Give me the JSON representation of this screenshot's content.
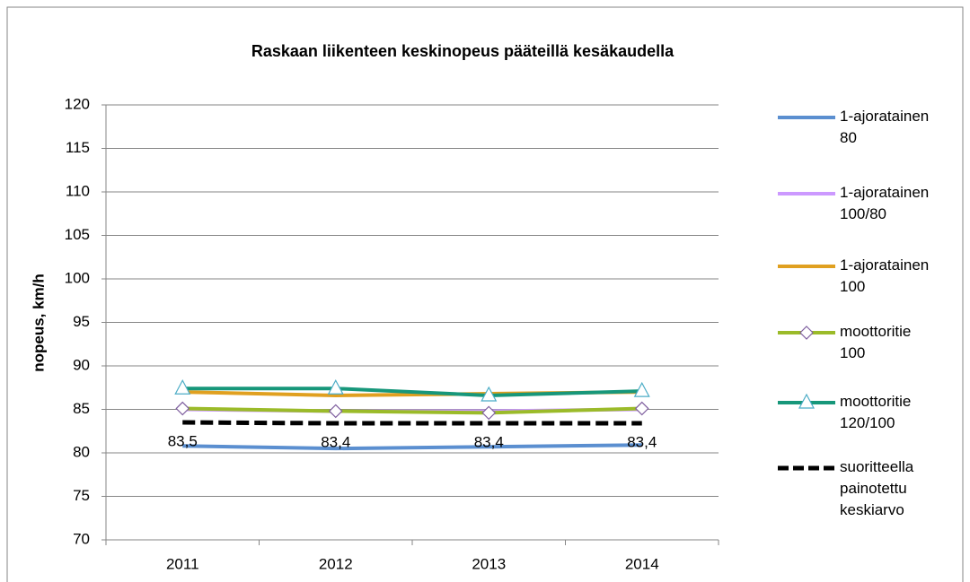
{
  "chart_data": {
    "type": "line",
    "title": "Raskaan liikenteen  keskinopeus pääteillä kesäkaudella",
    "y_label": "nopeus,  km/h",
    "categories": [
      "2011",
      "2012",
      "2013",
      "2014"
    ],
    "ylim": [
      70,
      120
    ],
    "yticks": [
      70,
      75,
      80,
      85,
      90,
      95,
      100,
      105,
      110,
      115,
      120
    ],
    "grid": true,
    "series": [
      {
        "name": "1-ajoratainen 80",
        "color": "#5b8fd0",
        "values": [
          80.8,
          80.5,
          80.7,
          80.9
        ]
      },
      {
        "name": "1-ajoratainen 100/80",
        "color": "#cc99ff",
        "values": [
          85.0,
          84.8,
          84.8,
          85.0
        ]
      },
      {
        "name": "1-ajoratainen 100",
        "color": "#e0a020",
        "values": [
          87.0,
          86.6,
          86.8,
          87.0
        ]
      },
      {
        "name": "moottoritie 100",
        "color": "#9bbb29",
        "marker": "diamond",
        "values": [
          85.1,
          84.8,
          84.6,
          85.1
        ]
      },
      {
        "name": "moottoritie 120/100",
        "color": "#17977a",
        "marker": "triangle",
        "values": [
          87.4,
          87.4,
          86.6,
          87.1
        ]
      },
      {
        "name": "suoritteella painotettu keskiarvo",
        "color": "#000000",
        "dashed": true,
        "values": [
          83.5,
          83.4,
          83.4,
          83.4
        ],
        "value_labels": [
          "83,5",
          "83,4",
          "83,4",
          "83,4"
        ]
      }
    ]
  }
}
